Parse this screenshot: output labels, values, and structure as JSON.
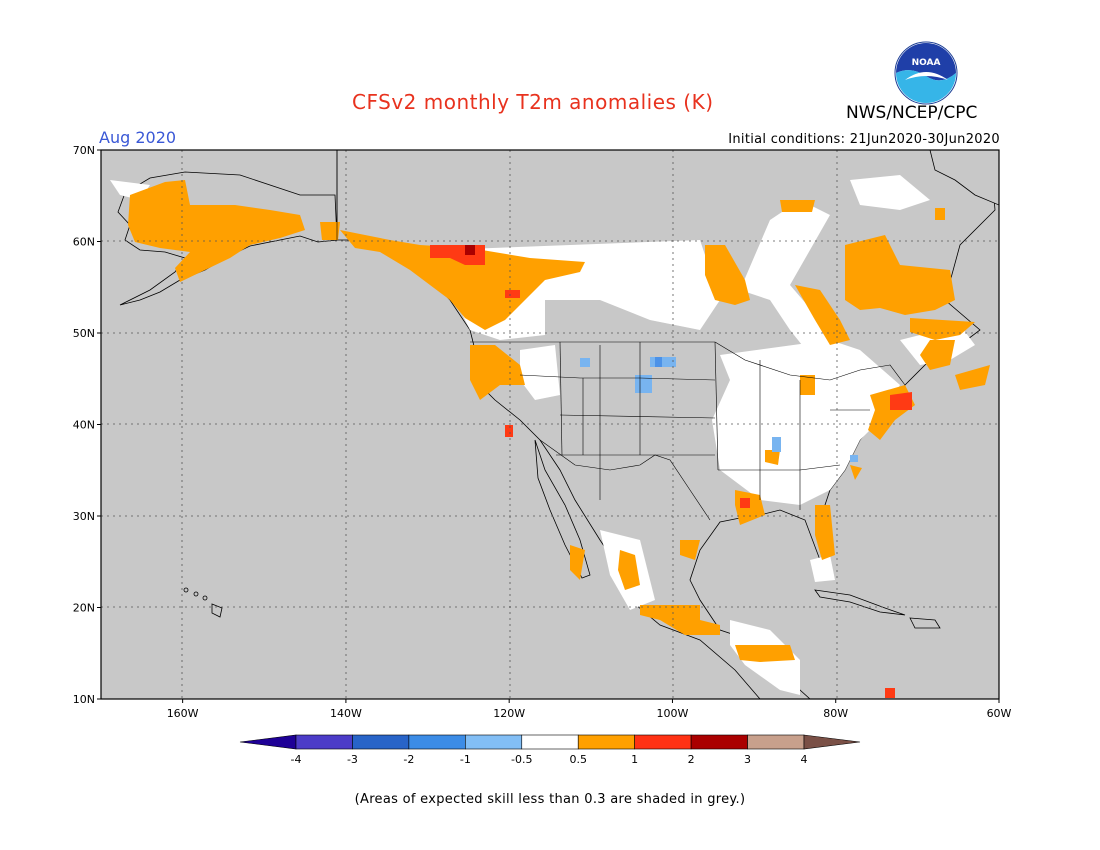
{
  "title": "CFSv2 monthly T2m anomalies (K)",
  "organization": "NWS/NCEP/CPC",
  "logo_text": "NOAA",
  "forecast_month": "Aug 2020",
  "initial_conditions": "Initial conditions: 21Jun2020-30Jun2020",
  "footnote": "(Areas of expected skill less than 0.3 are shaded in grey.)",
  "map": {
    "lat_ticks": [
      "70N",
      "60N",
      "50N",
      "40N",
      "30N",
      "20N",
      "10N"
    ],
    "lon_ticks": [
      "160W",
      "140W",
      "120W",
      "100W",
      "80W",
      "60W"
    ],
    "lat_range": [
      10,
      70
    ],
    "lon_range": [
      -170,
      -60
    ],
    "grid": true,
    "colors": {
      "no_skill_grey": "#c8c8c8",
      "ocean_bg": "#c8c8c8",
      "neutral": "#ffffff",
      "anom_0_5_to_1": "#ffa000",
      "anom_1_to_2": "#ff3a14",
      "anom_2_to_3": "#aa0000",
      "cool_m1_to_m0_5": "#78b4f0",
      "cool_m2_to_m1": "#4c92e8"
    }
  },
  "colorbar": {
    "labels": [
      "-4",
      "-3",
      "-2",
      "-1",
      "-0.5",
      "0.5",
      "1",
      "2",
      "3",
      "4"
    ],
    "colors": [
      "#1e0096",
      "#4c3cc8",
      "#2864c8",
      "#3c8ce6",
      "#82bef5",
      "#ffffff",
      "#ffa000",
      "#ff3214",
      "#aa0000",
      "#c8a08c",
      "#7a5046"
    ]
  }
}
